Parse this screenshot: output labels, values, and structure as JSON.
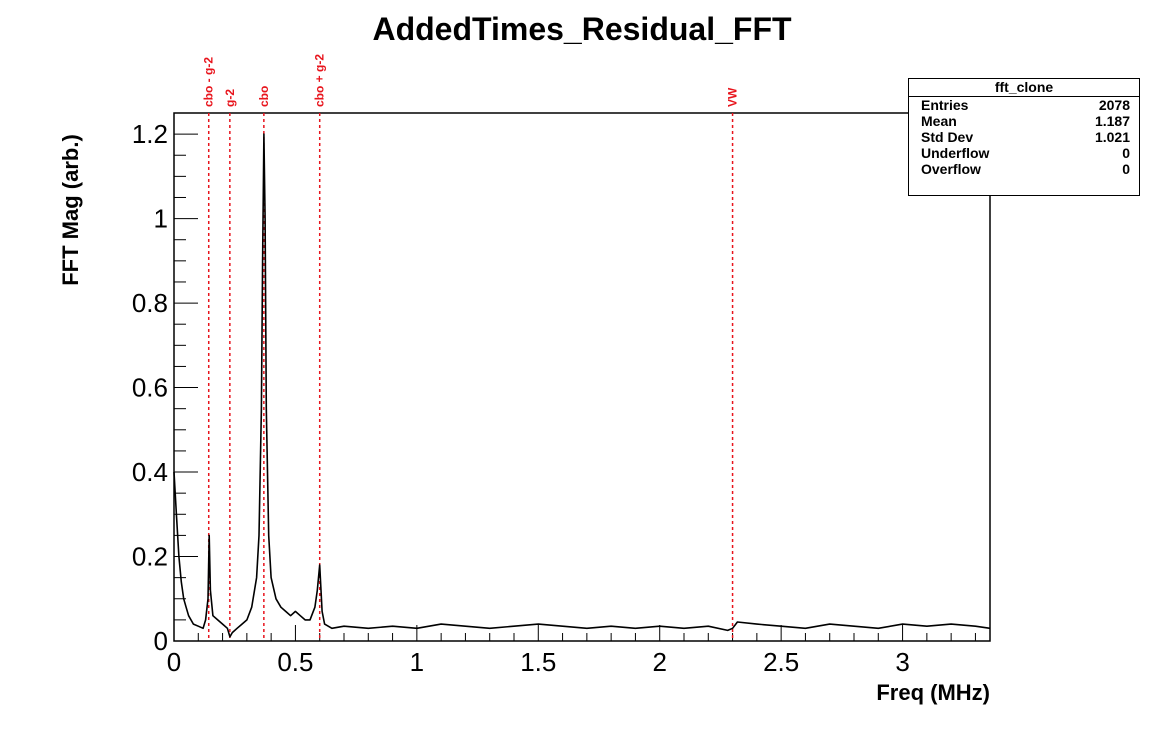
{
  "chart_data": {
    "type": "line",
    "title": "AddedTimes_Residual_FFT",
    "xlabel": "Freq (MHz)",
    "ylabel": "FFT Mag (arb.)",
    "xlim": [
      0,
      3.36
    ],
    "ylim": [
      0,
      1.25
    ],
    "x_ticks": [
      "0",
      "0.5",
      "1",
      "1.5",
      "2",
      "2.5",
      "3"
    ],
    "y_ticks": [
      "0",
      "0.2",
      "0.4",
      "0.6",
      "0.8",
      "1",
      "1.2"
    ],
    "line_color": "#000000",
    "marker_color": "#e8141c",
    "markers": [
      {
        "label": "cbo - g-2",
        "x": 0.143
      },
      {
        "label": "g-2",
        "x": 0.23
      },
      {
        "label": "cbo",
        "x": 0.37
      },
      {
        "label": "cbo + g-2",
        "x": 0.6
      },
      {
        "label": "VW",
        "x": 2.3
      }
    ],
    "series": [
      {
        "x": [
          0.0,
          0.01,
          0.02,
          0.03,
          0.04,
          0.05,
          0.06,
          0.08,
          0.1,
          0.12,
          0.13,
          0.14,
          0.145,
          0.15,
          0.16,
          0.18,
          0.2,
          0.22,
          0.23,
          0.24,
          0.26,
          0.28,
          0.3,
          0.32,
          0.34,
          0.35,
          0.36,
          0.365,
          0.37,
          0.375,
          0.38,
          0.39,
          0.4,
          0.42,
          0.44,
          0.46,
          0.48,
          0.5,
          0.52,
          0.54,
          0.56,
          0.58,
          0.59,
          0.6,
          0.61,
          0.62,
          0.65,
          0.7,
          0.8,
          0.9,
          1.0,
          1.1,
          1.2,
          1.3,
          1.4,
          1.5,
          1.6,
          1.7,
          1.8,
          1.9,
          2.0,
          2.1,
          2.2,
          2.28,
          2.3,
          2.32,
          2.4,
          2.5,
          2.6,
          2.7,
          2.8,
          2.9,
          3.0,
          3.1,
          3.2,
          3.3,
          3.36
        ],
        "values": [
          0.4,
          0.3,
          0.2,
          0.14,
          0.1,
          0.08,
          0.06,
          0.04,
          0.035,
          0.03,
          0.05,
          0.1,
          0.25,
          0.12,
          0.06,
          0.05,
          0.04,
          0.03,
          0.01,
          0.02,
          0.03,
          0.04,
          0.05,
          0.08,
          0.15,
          0.25,
          0.55,
          0.9,
          1.2,
          1.0,
          0.55,
          0.25,
          0.15,
          0.1,
          0.08,
          0.07,
          0.06,
          0.07,
          0.06,
          0.05,
          0.05,
          0.08,
          0.12,
          0.18,
          0.07,
          0.04,
          0.03,
          0.035,
          0.03,
          0.035,
          0.03,
          0.04,
          0.035,
          0.03,
          0.035,
          0.04,
          0.035,
          0.03,
          0.035,
          0.03,
          0.035,
          0.03,
          0.035,
          0.025,
          0.03,
          0.045,
          0.04,
          0.035,
          0.03,
          0.04,
          0.035,
          0.03,
          0.04,
          0.035,
          0.04,
          0.035,
          0.03
        ]
      }
    ]
  },
  "stats": {
    "title": "fft_clone",
    "rows": [
      {
        "label": "Entries",
        "value": "2078"
      },
      {
        "label": "Mean",
        "value": "1.187"
      },
      {
        "label": "Std Dev",
        "value": "1.021"
      },
      {
        "label": "Underflow",
        "value": "0"
      },
      {
        "label": "Overflow",
        "value": "0"
      }
    ]
  }
}
